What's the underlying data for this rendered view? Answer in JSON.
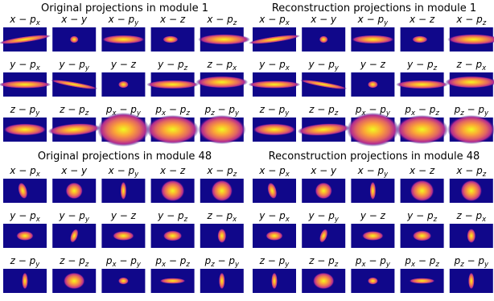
{
  "blocks": [
    {
      "title": "Original projections in module 1",
      "panels": [
        {
          "main": "x − p",
          "sub": "x"
        },
        {
          "main": "x − y"
        },
        {
          "main": "x − p",
          "sub": "y"
        },
        {
          "main": "x − z"
        },
        {
          "main": "x − p",
          "sub": "z"
        },
        {
          "main": "y − p",
          "sub": "x"
        },
        {
          "main": "y − p",
          "sub": "y"
        },
        {
          "main": "y − z"
        },
        {
          "main": "y − p",
          "sub": "z"
        },
        {
          "main": "z − p",
          "sub": "x"
        },
        {
          "main": "z − p",
          "sub": "y"
        },
        {
          "main": "z − p",
          "sub": "z"
        },
        {
          "main": "p",
          "sub": "x",
          "main2": " − p",
          "sub2": "y"
        },
        {
          "main": "p",
          "sub": "x",
          "main2": " − p",
          "sub2": "z"
        },
        {
          "main": "p",
          "sub": "z",
          "main2": " − p",
          "sub2": "y"
        }
      ]
    },
    {
      "title": "Reconstruction projections in module 1",
      "panels": [
        {
          "main": "x − p",
          "sub": "x"
        },
        {
          "main": "x − y"
        },
        {
          "main": "x − p",
          "sub": "y"
        },
        {
          "main": "x − z"
        },
        {
          "main": "x − p",
          "sub": "z"
        },
        {
          "main": "y − p",
          "sub": "x"
        },
        {
          "main": "y − p",
          "sub": "y"
        },
        {
          "main": "y − z"
        },
        {
          "main": "y − p",
          "sub": "z"
        },
        {
          "main": "z − p",
          "sub": "x"
        },
        {
          "main": "z − p",
          "sub": "y"
        },
        {
          "main": "z − p",
          "sub": "z"
        },
        {
          "main": "p",
          "sub": "x",
          "main2": " − p",
          "sub2": "y"
        },
        {
          "main": "p",
          "sub": "x",
          "main2": " − p",
          "sub2": "z"
        },
        {
          "main": "p",
          "sub": "z",
          "main2": " − p",
          "sub2": "y"
        }
      ]
    },
    {
      "title": "Original projections in module 48",
      "panels": [
        {
          "main": "x − p",
          "sub": "x"
        },
        {
          "main": "x − y"
        },
        {
          "main": "x − p",
          "sub": "y"
        },
        {
          "main": "x − z"
        },
        {
          "main": "x − p",
          "sub": "z"
        },
        {
          "main": "y − p",
          "sub": "x"
        },
        {
          "main": "y − p",
          "sub": "y"
        },
        {
          "main": "y − z"
        },
        {
          "main": "y − p",
          "sub": "z"
        },
        {
          "main": "z − p",
          "sub": "x"
        },
        {
          "main": "z − p",
          "sub": "y"
        },
        {
          "main": "z − p",
          "sub": "z"
        },
        {
          "main": "p",
          "sub": "x",
          "main2": " − p",
          "sub2": "y"
        },
        {
          "main": "p",
          "sub": "x",
          "main2": " − p",
          "sub2": "z"
        },
        {
          "main": "p",
          "sub": "z",
          "main2": " − p",
          "sub2": "y"
        }
      ]
    },
    {
      "title": "Reconstruction projections in module 48",
      "panels": [
        {
          "main": "x − p",
          "sub": "x"
        },
        {
          "main": "x − y"
        },
        {
          "main": "x − p",
          "sub": "y"
        },
        {
          "main": "x − z"
        },
        {
          "main": "x − p",
          "sub": "z"
        },
        {
          "main": "y − p",
          "sub": "x"
        },
        {
          "main": "y − p",
          "sub": "y"
        },
        {
          "main": "y − z"
        },
        {
          "main": "y − p",
          "sub": "z"
        },
        {
          "main": "z − p",
          "sub": "x"
        },
        {
          "main": "z − p",
          "sub": "y"
        },
        {
          "main": "z − p",
          "sub": "z"
        },
        {
          "main": "p",
          "sub": "x",
          "main2": " − p",
          "sub2": "y"
        },
        {
          "main": "p",
          "sub": "x",
          "main2": " − p",
          "sub2": "z"
        },
        {
          "main": "p",
          "sub": "z",
          "main2": " − p",
          "sub2": "y"
        }
      ]
    }
  ]
}
